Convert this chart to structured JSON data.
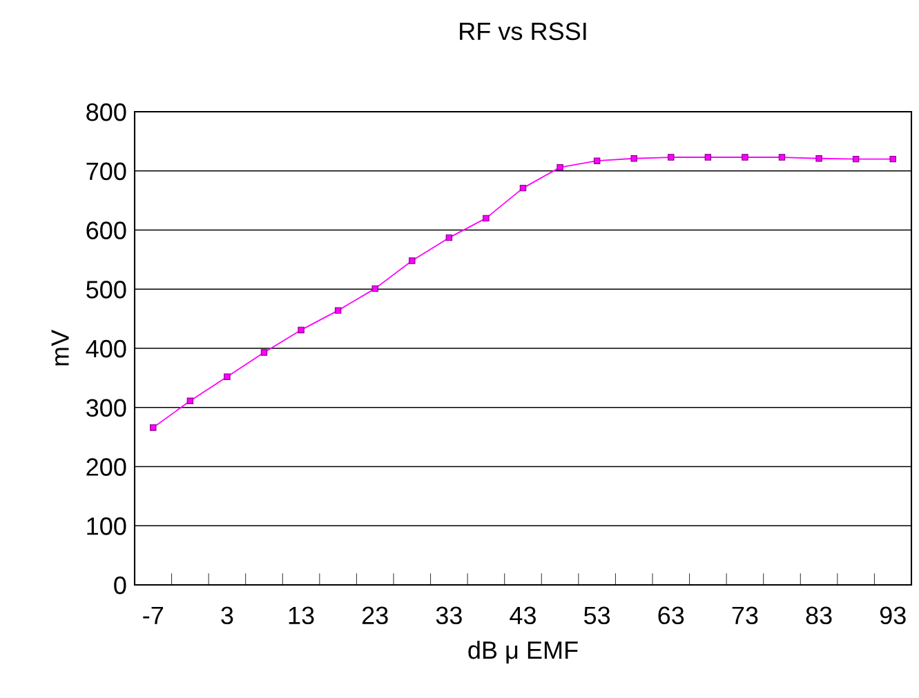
{
  "chart_data": {
    "type": "line",
    "title": "RF vs RSSI",
    "xlabel": "dB μ EMF",
    "ylabel": "mV",
    "categories": [
      "-7",
      null,
      "3",
      null,
      "13",
      null,
      "23",
      null,
      "33",
      null,
      "43",
      null,
      "53",
      null,
      "63",
      null,
      "73",
      null,
      "83",
      null,
      "93"
    ],
    "series": [
      {
        "color": "#ff00ff",
        "values": [
          266,
          311,
          352,
          393,
          431,
          464,
          501,
          548,
          587,
          620,
          671,
          706,
          717,
          721,
          723,
          723,
          723,
          723,
          721,
          720,
          720
        ]
      }
    ],
    "ylim": [
      0,
      800
    ],
    "yticks": [
      0,
      100,
      200,
      300,
      400,
      500,
      600,
      700,
      800
    ],
    "grid": "y",
    "marker": "square",
    "line_style": "solid"
  }
}
